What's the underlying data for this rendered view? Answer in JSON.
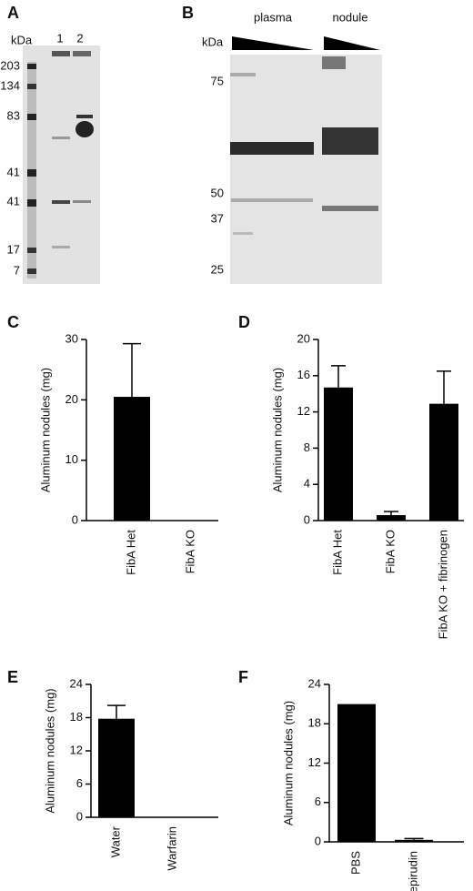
{
  "chart_data": [
    {
      "panel": "A",
      "type": "gel",
      "y_label": "kDa",
      "lanes": [
        "1",
        "2"
      ],
      "markers": [
        203,
        134,
        83,
        41,
        41,
        17,
        7
      ]
    },
    {
      "panel": "B",
      "type": "gel",
      "y_label": "kDa",
      "lanes": [
        "plasma",
        "nodule"
      ],
      "markers": [
        75,
        50,
        37,
        25
      ]
    },
    {
      "panel": "C",
      "type": "bar",
      "ylabel": "Aluminum nodules (mg)",
      "categories": [
        "FibA Het",
        "FibA KO"
      ],
      "values": [
        20.5,
        0
      ],
      "errors": [
        8.8,
        0
      ],
      "color": "#000000",
      "ylim": [
        0,
        30
      ],
      "yticks": [
        0,
        10,
        20,
        30
      ]
    },
    {
      "panel": "D",
      "type": "bar",
      "ylabel": "Aluminum nodules (mg)",
      "categories": [
        "FibA Het",
        "FibA KO",
        "FibA KO + fibrinogen"
      ],
      "values": [
        14.7,
        0.6,
        12.9
      ],
      "errors": [
        2.4,
        0.4,
        3.6
      ],
      "color": "#000000",
      "ylim": [
        0,
        20
      ],
      "yticks": [
        0,
        4,
        8,
        12,
        16,
        20
      ]
    },
    {
      "panel": "E",
      "type": "bar",
      "ylabel": "Aluminum nodules (mg)",
      "categories": [
        "Water",
        "Warfarin"
      ],
      "values": [
        17.8,
        0
      ],
      "errors": [
        2.4,
        0
      ],
      "color": "#000000",
      "ylim": [
        0,
        24
      ],
      "yticks": [
        0,
        6,
        12,
        18,
        24
      ]
    },
    {
      "panel": "F",
      "type": "bar",
      "ylabel": "Aluminum nodules (mg)",
      "categories": [
        "PBS",
        "Lepirudin"
      ],
      "values": [
        21,
        0.3
      ],
      "errors": [
        0,
        0.2
      ],
      "color": "#000000",
      "ylim": [
        0,
        24
      ],
      "yticks": [
        0,
        6,
        12,
        18,
        24
      ]
    }
  ]
}
